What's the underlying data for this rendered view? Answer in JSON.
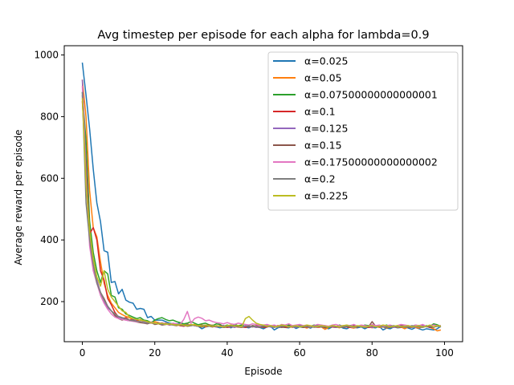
{
  "chart_data": {
    "type": "line",
    "title": "Avg timestep per episode for each alpha for lambda=0.9",
    "xlabel": "Episode",
    "ylabel": "Average reward per episode",
    "xlim": [
      -5,
      105
    ],
    "ylim": [
      70,
      1030
    ],
    "xticks": [
      0,
      20,
      40,
      60,
      80,
      100
    ],
    "yticks": [
      200,
      400,
      600,
      800,
      1000
    ],
    "grid": false,
    "legend_position": "top-right",
    "x": [
      0,
      1,
      2,
      3,
      4,
      5,
      6,
      7,
      8,
      9,
      10,
      11,
      12,
      13,
      14,
      15,
      16,
      17,
      18,
      19,
      20,
      21,
      22,
      23,
      24,
      25,
      26,
      27,
      28,
      29,
      30,
      31,
      32,
      33,
      34,
      35,
      36,
      37,
      38,
      39,
      40,
      41,
      42,
      43,
      44,
      45,
      46,
      47,
      48,
      49,
      50,
      51,
      52,
      53,
      54,
      55,
      56,
      57,
      58,
      59,
      60,
      61,
      62,
      63,
      64,
      65,
      66,
      67,
      68,
      69,
      70,
      71,
      72,
      73,
      74,
      75,
      76,
      77,
      78,
      79,
      80,
      81,
      82,
      83,
      84,
      85,
      86,
      87,
      88,
      89,
      90,
      91,
      92,
      93,
      94,
      95,
      96,
      97,
      98,
      99
    ],
    "series": [
      {
        "name": "α=0.025",
        "color": "#1f77b4",
        "values": [
          975,
          870,
          760,
          630,
          520,
          460,
          365,
          360,
          262,
          265,
          225,
          240,
          205,
          198,
          195,
          175,
          178,
          175,
          148,
          152,
          140,
          140,
          140,
          135,
          130,
          128,
          128,
          130,
          125,
          122,
          125,
          122,
          120,
          112,
          118,
          120,
          122,
          118,
          115,
          118,
          122,
          115,
          120,
          118,
          120,
          117,
          115,
          120,
          118,
          116,
          112,
          118,
          120,
          108,
          115,
          118,
          116,
          115,
          120,
          113,
          118,
          116,
          118,
          114,
          120,
          116,
          118,
          115,
          112,
          118,
          116,
          120,
          114,
          112,
          118,
          116,
          115,
          118,
          112,
          118,
          116,
          115,
          120,
          108,
          114,
          112,
          118,
          115,
          116,
          118,
          114,
          110,
          116,
          112,
          108,
          112,
          110,
          108,
          112,
          120
        ]
      },
      {
        "name": "α=0.05",
        "color": "#ff7f0e",
        "values": [
          920,
          800,
          560,
          440,
          410,
          330,
          260,
          220,
          195,
          180,
          165,
          158,
          152,
          148,
          140,
          138,
          142,
          135,
          132,
          130,
          135,
          132,
          128,
          130,
          126,
          128,
          125,
          122,
          125,
          128,
          122,
          126,
          120,
          125,
          118,
          122,
          124,
          118,
          120,
          122,
          118,
          124,
          120,
          117,
          120,
          122,
          118,
          120,
          116,
          120,
          118,
          122,
          118,
          120,
          118,
          124,
          118,
          120,
          116,
          120,
          122,
          118,
          114,
          120,
          118,
          116,
          118,
          110,
          116,
          120,
          118,
          115,
          120,
          118,
          116,
          114,
          118,
          120,
          116,
          118,
          115,
          120,
          116,
          118,
          114,
          118,
          120,
          116,
          118,
          112,
          118,
          120,
          116,
          114,
          118,
          120,
          116,
          112,
          105,
          108
        ]
      },
      {
        "name": "α=0.07500000000000001",
        "color": "#2ca02c",
        "values": [
          880,
          720,
          460,
          360,
          300,
          262,
          300,
          290,
          220,
          215,
          180,
          175,
          160,
          155,
          150,
          145,
          148,
          140,
          138,
          132,
          140,
          145,
          148,
          142,
          138,
          140,
          135,
          132,
          128,
          130,
          135,
          130,
          125,
          128,
          130,
          125,
          122,
          128,
          126,
          120,
          124,
          120,
          126,
          122,
          124,
          120,
          118,
          122,
          120,
          124,
          118,
          122,
          120,
          116,
          122,
          118,
          120,
          124,
          118,
          116,
          120,
          122,
          118,
          120,
          124,
          120,
          118,
          122,
          116,
          120,
          118,
          124,
          120,
          118,
          122,
          116,
          120,
          118,
          124,
          122,
          120,
          118,
          122,
          120,
          124,
          120,
          118,
          120,
          116,
          122,
          120,
          118,
          124,
          120,
          118,
          122,
          120,
          128,
          125,
          120
        ]
      },
      {
        "name": "α=0.1",
        "color": "#d62728",
        "values": [
          850,
          650,
          420,
          440,
          400,
          300,
          270,
          210,
          190,
          165,
          150,
          145,
          148,
          140,
          142,
          138,
          135,
          132,
          130,
          134,
          128,
          130,
          125,
          128,
          124,
          126,
          128,
          122,
          120,
          124,
          126,
          122,
          120,
          118,
          122,
          124,
          120,
          118,
          122,
          120,
          116,
          118,
          120,
          122,
          118,
          116,
          120,
          118,
          122,
          120,
          116,
          118,
          120,
          118,
          122,
          120,
          116,
          118,
          120,
          122,
          118,
          120,
          116,
          118,
          120,
          118,
          122,
          116,
          120,
          118,
          116,
          120,
          122,
          118,
          116,
          120,
          118,
          122,
          120,
          116,
          118,
          120,
          122,
          118,
          116,
          120,
          118,
          122,
          116,
          120,
          118,
          116,
          120,
          122,
          118,
          120,
          116,
          118,
          122,
          120
        ]
      },
      {
        "name": "α=0.125",
        "color": "#9467bd",
        "values": [
          920,
          640,
          400,
          320,
          270,
          230,
          200,
          180,
          170,
          160,
          150,
          145,
          140,
          138,
          142,
          136,
          132,
          135,
          130,
          132,
          128,
          130,
          126,
          128,
          125,
          127,
          124,
          126,
          122,
          124,
          125,
          122,
          120,
          122,
          124,
          120,
          122,
          118,
          120,
          122,
          118,
          120,
          116,
          120,
          118,
          122,
          118,
          120,
          116,
          118,
          120,
          122,
          118,
          116,
          120,
          118,
          122,
          120,
          118,
          116,
          120,
          122,
          118,
          120,
          116,
          118,
          120,
          122,
          118,
          120,
          116,
          118,
          122,
          120,
          118,
          116,
          120,
          122,
          118,
          120,
          116,
          120,
          118,
          122,
          120,
          118,
          116,
          120,
          118,
          122,
          120,
          116,
          118,
          120,
          122,
          118,
          120,
          116,
          122,
          118
        ]
      },
      {
        "name": "α=0.15",
        "color": "#8c564b",
        "values": [
          870,
          620,
          410,
          310,
          260,
          230,
          210,
          185,
          170,
          155,
          145,
          140,
          145,
          138,
          140,
          134,
          132,
          130,
          128,
          132,
          126,
          128,
          124,
          126,
          128,
          124,
          122,
          126,
          124,
          120,
          122,
          124,
          120,
          118,
          122,
          120,
          118,
          122,
          120,
          116,
          118,
          120,
          122,
          118,
          116,
          120,
          118,
          122,
          120,
          116,
          118,
          120,
          122,
          118,
          120,
          116,
          118,
          120,
          122,
          118,
          120,
          116,
          120,
          118,
          122,
          120,
          118,
          116,
          120,
          122,
          118,
          120,
          116,
          118,
          120,
          122,
          118,
          120,
          116,
          118,
          135,
          120,
          118,
          122,
          118,
          116,
          120,
          118,
          122,
          120,
          116,
          118,
          120,
          122,
          118,
          120,
          116,
          118,
          120,
          122
        ]
      },
      {
        "name": "α=0.17500000000000002",
        "color": "#e377c2",
        "values": [
          900,
          600,
          380,
          300,
          260,
          220,
          195,
          175,
          160,
          150,
          145,
          142,
          140,
          138,
          136,
          134,
          135,
          132,
          130,
          134,
          130,
          128,
          132,
          128,
          126,
          130,
          128,
          126,
          142,
          168,
          130,
          145,
          150,
          146,
          138,
          140,
          135,
          132,
          130,
          128,
          132,
          128,
          126,
          130,
          128,
          126,
          124,
          128,
          126,
          122,
          124,
          126,
          122,
          124,
          120,
          126,
          124,
          128,
          122,
          124,
          126,
          122,
          124,
          120,
          122,
          126,
          124,
          122,
          120,
          124,
          126,
          122,
          120,
          124,
          122,
          126,
          120,
          124,
          122,
          120,
          126,
          122,
          124,
          120,
          122,
          124,
          120,
          122,
          126,
          124,
          122,
          120,
          124,
          122,
          126,
          120,
          122,
          124,
          122,
          120
        ]
      },
      {
        "name": "α=0.2",
        "color": "#7f7f7f",
        "values": [
          880,
          520,
          400,
          320,
          260,
          230,
          205,
          185,
          170,
          160,
          152,
          148,
          145,
          140,
          138,
          136,
          135,
          132,
          130,
          132,
          128,
          130,
          126,
          128,
          126,
          124,
          126,
          124,
          122,
          126,
          122,
          124,
          120,
          122,
          124,
          120,
          122,
          120,
          118,
          122,
          120,
          118,
          122,
          120,
          118,
          120,
          122,
          118,
          120,
          118,
          122,
          120,
          118,
          120,
          116,
          120,
          122,
          118,
          120,
          118,
          122,
          120,
          118,
          116,
          120,
          122,
          118,
          120,
          118,
          122,
          120,
          116,
          118,
          120,
          122,
          118,
          120,
          118,
          116,
          120,
          122,
          118,
          120,
          118,
          116,
          120,
          122,
          118,
          120,
          116,
          118,
          122,
          120,
          118,
          116,
          120,
          122,
          118,
          120,
          118
        ]
      },
      {
        "name": "α=0.225",
        "color": "#bcbd22",
        "values": [
          860,
          580,
          430,
          340,
          280,
          250,
          300,
          240,
          215,
          200,
          185,
          170,
          165,
          150,
          145,
          142,
          140,
          138,
          135,
          132,
          130,
          128,
          130,
          126,
          128,
          126,
          124,
          126,
          124,
          122,
          126,
          124,
          122,
          120,
          124,
          122,
          120,
          122,
          120,
          118,
          122,
          124,
          120,
          122,
          118,
          145,
          152,
          140,
          130,
          126,
          124,
          120,
          122,
          118,
          120,
          124,
          122,
          118,
          120,
          122,
          118,
          120,
          124,
          122,
          118,
          120,
          122,
          120,
          118,
          122,
          120,
          118,
          122,
          124,
          120,
          118,
          122,
          120,
          118,
          120,
          122,
          118,
          120,
          124,
          122,
          118,
          120,
          122,
          118,
          120,
          122,
          118,
          120,
          122,
          118,
          120,
          124,
          118,
          122,
          120
        ]
      }
    ]
  }
}
